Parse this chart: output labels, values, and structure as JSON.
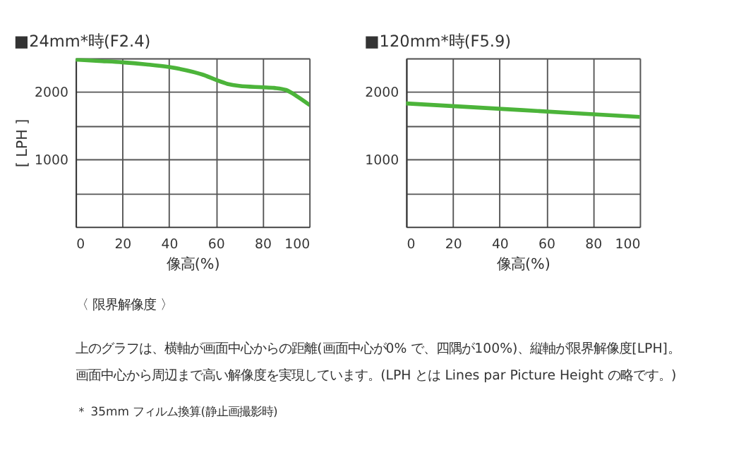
{
  "chart_data": [
    {
      "type": "line",
      "title": "■24mm*時(F2.4)",
      "xlabel": "像高(%)",
      "ylabel": "[ LPH ]",
      "x": [
        0,
        10,
        20,
        30,
        40,
        50,
        55,
        60,
        65,
        70,
        80,
        85,
        90,
        95,
        100
      ],
      "xlim": [
        0,
        100
      ],
      "xticks": [
        0,
        20,
        40,
        60,
        80,
        100
      ],
      "ylim": [
        0,
        2500
      ],
      "yticks": [
        {
          "value": 500,
          "label": null
        },
        1000,
        {
          "value": 1500,
          "label": null
        },
        2000,
        {
          "value": 2500,
          "label": null
        }
      ],
      "grid": true,
      "series": [
        {
          "color": "#4cb43a",
          "values": [
            2480,
            2460,
            2440,
            2410,
            2370,
            2300,
            2250,
            2180,
            2120,
            2090,
            2070,
            2060,
            2030,
            1930,
            1810
          ]
        }
      ],
      "annotations": [
        "〈 限界解像度 〉",
        "上のグラフは、横軸が画面中心からの距離(画面中心が0% で、四隅が100%)、縦軸が限界解像度[LPH]。",
        "画面中心から周辺まで高い解像度を実現しています。(LPH とは Lines par Picture Height の略です。)",
        "＊ 35mm フィルム換算(静止画撮影時)"
      ]
    },
    {
      "type": "line",
      "title": "■120mm*時(F5.9)",
      "xlabel": "像高(%)",
      "x": [
        0,
        50,
        100
      ],
      "xlim": [
        0,
        100
      ],
      "xticks": [
        0,
        20,
        40,
        60,
        80,
        100
      ],
      "ylim": [
        0,
        2500
      ],
      "yticks": [
        {
          "value": 500,
          "label": null
        },
        1000,
        {
          "value": 1500,
          "label": null
        },
        2000,
        {
          "value": 2500,
          "label": null
        }
      ],
      "grid": true,
      "series": [
        {
          "color": "#4cb43a",
          "values": [
            1830,
            1730,
            1630
          ]
        }
      ]
    }
  ]
}
